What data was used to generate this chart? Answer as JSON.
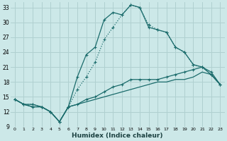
{
  "title": "",
  "xlabel": "Humidex (Indice chaleur)",
  "ylabel": "",
  "bg_color": "#cce8e8",
  "grid_color": "#b0d0d0",
  "line_color": "#1a6b6b",
  "xlim": [
    -0.5,
    23.5
  ],
  "ylim": [
    9,
    34
  ],
  "xticks": [
    0,
    1,
    2,
    3,
    4,
    5,
    6,
    7,
    8,
    9,
    10,
    11,
    12,
    13,
    14,
    15,
    16,
    17,
    18,
    19,
    20,
    21,
    22,
    23
  ],
  "yticks": [
    9,
    12,
    15,
    18,
    21,
    24,
    27,
    30,
    33
  ],
  "line1_x": [
    0,
    1,
    2,
    3,
    4,
    5,
    6,
    7,
    8,
    9,
    10,
    11,
    12,
    13,
    14,
    15,
    16,
    17,
    18,
    19,
    20,
    21,
    22,
    23
  ],
  "line1_y": [
    14.5,
    13.5,
    13.5,
    13.0,
    12.0,
    10.0,
    13.0,
    19.0,
    23.5,
    25.0,
    30.5,
    32.0,
    31.5,
    33.5,
    33.0,
    29.0,
    28.5,
    28.0,
    25.0,
    24.0,
    21.5,
    21.0,
    19.5,
    17.5
  ],
  "line1_style": "solid",
  "line1_marker": true,
  "line2_x": [
    0,
    1,
    2,
    3,
    4,
    5,
    6,
    7,
    8,
    9,
    10,
    11,
    12,
    13,
    14,
    15,
    16,
    17,
    18,
    19,
    20,
    21,
    22,
    23
  ],
  "line2_y": [
    14.5,
    13.5,
    13.5,
    13.0,
    12.0,
    10.0,
    13.0,
    16.5,
    19.0,
    22.0,
    26.5,
    29.0,
    31.5,
    33.5,
    33.0,
    29.5,
    28.5,
    28.0,
    25.0,
    24.0,
    21.5,
    21.0,
    19.5,
    17.5
  ],
  "line2_style": "dotted",
  "line2_marker": true,
  "line3_x": [
    0,
    1,
    2,
    3,
    4,
    5,
    6,
    7,
    8,
    9,
    10,
    11,
    12,
    13,
    14,
    15,
    16,
    17,
    18,
    19,
    20,
    21,
    22,
    23
  ],
  "line3_y": [
    14.5,
    13.5,
    13.0,
    13.0,
    12.0,
    10.0,
    13.0,
    13.5,
    14.5,
    15.0,
    16.0,
    17.0,
    17.5,
    18.5,
    18.5,
    18.5,
    18.5,
    19.0,
    19.5,
    20.0,
    20.5,
    21.0,
    20.0,
    17.5
  ],
  "line3_style": "solid",
  "line3_marker": true,
  "line4_x": [
    0,
    1,
    2,
    3,
    4,
    5,
    6,
    7,
    8,
    9,
    10,
    11,
    12,
    13,
    14,
    15,
    16,
    17,
    18,
    19,
    20,
    21,
    22,
    23
  ],
  "line4_y": [
    14.5,
    13.5,
    13.0,
    13.0,
    12.0,
    10.0,
    13.0,
    13.5,
    14.0,
    14.5,
    15.0,
    15.5,
    16.0,
    16.5,
    17.0,
    17.5,
    18.0,
    18.0,
    18.5,
    18.5,
    19.0,
    20.0,
    19.5,
    17.5
  ],
  "line4_style": "solid",
  "line4_marker": false
}
